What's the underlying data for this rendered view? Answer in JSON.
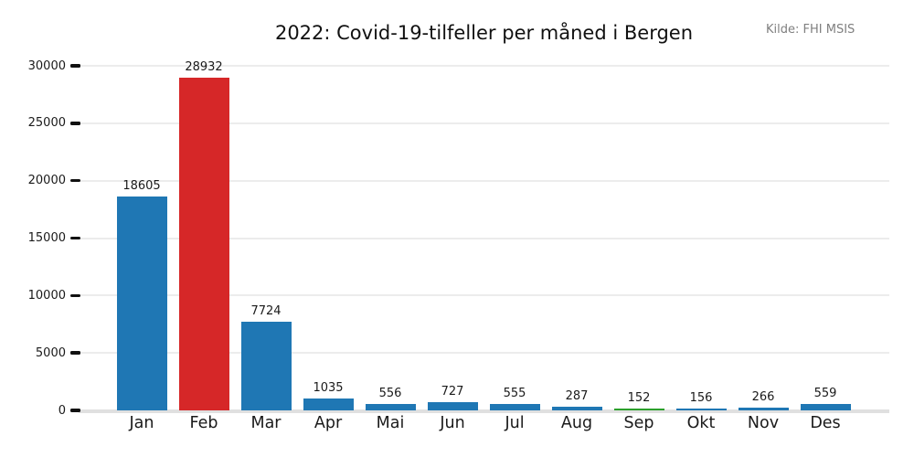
{
  "chart_data": {
    "type": "bar",
    "title": "2022: Covid-19-tilfeller per måned i Bergen",
    "annotation": "Kilde: FHI MSIS",
    "categories": [
      "Jan",
      "Feb",
      "Mar",
      "Apr",
      "Mai",
      "Jun",
      "Jul",
      "Aug",
      "Sep",
      "Okt",
      "Nov",
      "Des"
    ],
    "values": [
      18605,
      28932,
      7724,
      1035,
      556,
      727,
      555,
      287,
      152,
      156,
      266,
      559
    ],
    "bar_colors": [
      "#1f77b4",
      "#d62728",
      "#1f77b4",
      "#1f77b4",
      "#1f77b4",
      "#1f77b4",
      "#1f77b4",
      "#1f77b4",
      "#2ca02c",
      "#1f77b4",
      "#1f77b4",
      "#1f77b4"
    ],
    "xlabel": "",
    "ylabel": "",
    "ylim": [
      0,
      30000
    ],
    "yticks": [
      0,
      5000,
      10000,
      15000,
      20000,
      25000,
      30000
    ],
    "grid": "horizontal",
    "legend_position": "none",
    "value_labels_shown": true,
    "colors": {
      "bar_default": "#1f77b4",
      "bar_highlight_red": "#d62728",
      "bar_highlight_green": "#2ca02c",
      "gridline": "#ececec",
      "zero_line": "#e0e0e0",
      "tick_text": "#1a1a1a",
      "tick_mark": "#111111",
      "title_text": "#111111",
      "annotation_text": "#7f7f7f",
      "background": "#ffffff"
    }
  }
}
